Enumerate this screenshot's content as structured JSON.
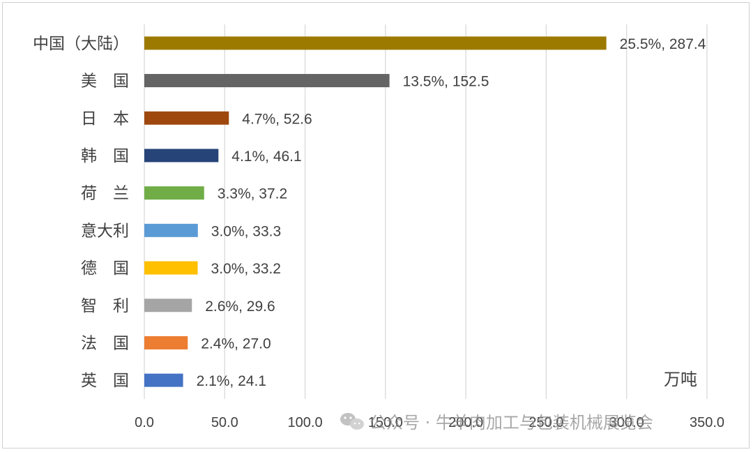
{
  "chart_data": {
    "type": "bar",
    "orientation": "horizontal",
    "categories": [
      "中国（大陆）",
      "美　国",
      "日　本",
      "韩　国",
      "荷　兰",
      "意大利",
      "德　国",
      "智　利",
      "法　国",
      "英　国"
    ],
    "values": [
      287.4,
      152.5,
      52.6,
      46.1,
      37.2,
      33.3,
      33.2,
      29.6,
      27.0,
      24.1
    ],
    "shares": [
      "25.5%",
      "13.5%",
      "4.7%",
      "4.1%",
      "3.3%",
      "3.0%",
      "3.0%",
      "2.6%",
      "2.4%",
      "2.1%"
    ],
    "data_labels": [
      "25.5%, 287.4",
      "13.5%, 152.5",
      "4.7%, 52.6",
      "4.1%, 46.1",
      "3.3%, 37.2",
      "3.0%, 33.3",
      "3.0%, 33.2",
      "2.6%, 29.6",
      "2.4%, 27.0",
      "2.1%, 24.1"
    ],
    "colors": [
      "#9C7A00",
      "#646464",
      "#9E480E",
      "#264478",
      "#70AD47",
      "#5B9BD5",
      "#FFC000",
      "#A5A5A5",
      "#ED7D31",
      "#4472C4"
    ],
    "xlim": [
      0,
      350
    ],
    "x_ticks": [
      "0.0",
      "50.0",
      "100.0",
      "150.0",
      "200.0",
      "250.0",
      "300.0",
      "350.0"
    ],
    "unit": "万吨",
    "grid": "vertical",
    "title": "",
    "xlabel": "",
    "ylabel": ""
  },
  "watermark": {
    "text": "公众号 · 牛羊肉加工与包装机械展览会",
    "icon": "wechat-icon"
  }
}
